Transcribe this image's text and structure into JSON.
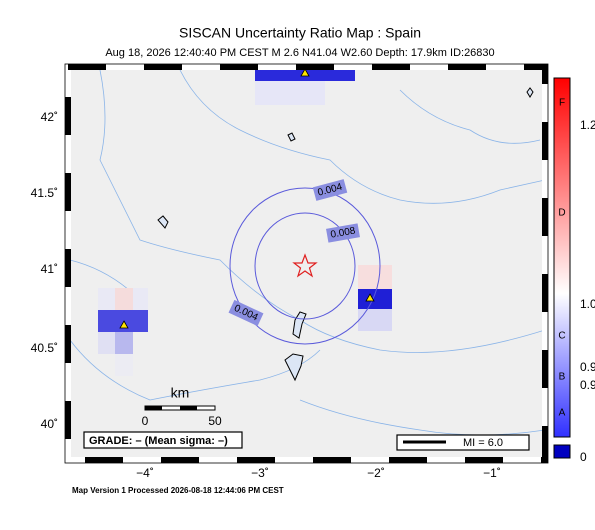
{
  "header": {
    "title": "SISCAN Uncertainty Ratio Map : Spain",
    "subtitle": "Aug 18, 2026 12:40:40 PM CEST   M 2.6   N41.04 W2.60   Depth: 17.9km   ID:26830"
  },
  "map": {
    "lat_labels": [
      "42˚",
      "41.5˚",
      "41˚",
      "40.5˚",
      "40˚"
    ],
    "lon_labels": [
      "−4˚",
      "−3˚",
      "−2˚",
      "−1˚"
    ],
    "contour_labels": [
      "0.004",
      "0.008",
      "0.004"
    ],
    "scale": {
      "unit": "km",
      "labels": [
        "0",
        "50"
      ]
    },
    "grade": "GRADE: – (Mean sigma: –)",
    "legend": "MI = 6.0"
  },
  "colorbar": {
    "grades": [
      "F",
      "D",
      "C",
      "B",
      "A"
    ],
    "values": [
      "1.2",
      "1.0",
      "0.9",
      "0.9",
      "0"
    ]
  },
  "footer": "Map Version 1 Processed 2026-08-18 12:44:06 PM CEST"
}
